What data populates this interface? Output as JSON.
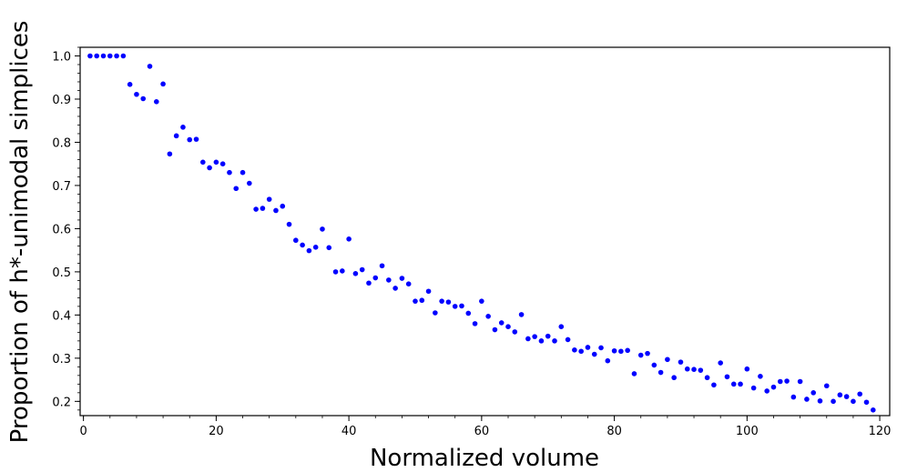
{
  "chart_data": {
    "type": "scatter",
    "title": "",
    "xlabel": "Normalized volume",
    "ylabel": "Proportion of h*-unimodal simplices",
    "xlim": [
      -0.5,
      121.5
    ],
    "ylim": [
      0.167,
      1.02
    ],
    "xticks": [
      0,
      20,
      40,
      60,
      80,
      100,
      120
    ],
    "yticks": [
      0.2,
      0.3,
      0.4,
      0.5,
      0.6,
      0.7,
      0.8,
      0.9,
      1.0
    ],
    "ytick_labels": [
      "0.2",
      "0.3",
      "0.4",
      "0.5",
      "0.6",
      "0.7",
      "0.8",
      "0.9",
      "1.0"
    ],
    "grid": false,
    "legend": "none",
    "series": [
      {
        "color": "#0000ff",
        "x": [
          1,
          2,
          3,
          4,
          5,
          6,
          7,
          8,
          9,
          10,
          11,
          12,
          13,
          14,
          15,
          16,
          17,
          18,
          19,
          20,
          21,
          22,
          23,
          24,
          25,
          26,
          27,
          28,
          29,
          30,
          31,
          32,
          33,
          34,
          35,
          36,
          37,
          38,
          39,
          40,
          41,
          42,
          43,
          44,
          45,
          46,
          47,
          48,
          49,
          50,
          51,
          52,
          53,
          54,
          55,
          56,
          57,
          58,
          59,
          60,
          61,
          62,
          63,
          64,
          65,
          66,
          67,
          68,
          69,
          70,
          71,
          72,
          73,
          74,
          75,
          76,
          77,
          78,
          79,
          80,
          81,
          82,
          83,
          84,
          85,
          86,
          87,
          88,
          89,
          90,
          91,
          92,
          93,
          94,
          95,
          96,
          97,
          98,
          99,
          100,
          101,
          102,
          103,
          104,
          105,
          106,
          107,
          108,
          109,
          110,
          111,
          112,
          113,
          114,
          115,
          116,
          117,
          118,
          119
        ],
        "y": [
          1.0,
          1.0,
          1.0,
          1.0,
          1.0,
          1.0,
          0.934,
          0.911,
          0.901,
          0.976,
          0.894,
          0.935,
          0.773,
          0.815,
          0.835,
          0.806,
          0.807,
          0.754,
          0.741,
          0.754,
          0.75,
          0.73,
          0.693,
          0.73,
          0.705,
          0.645,
          0.647,
          0.668,
          0.642,
          0.652,
          0.61,
          0.573,
          0.562,
          0.549,
          0.557,
          0.599,
          0.556,
          0.5,
          0.502,
          0.576,
          0.496,
          0.505,
          0.474,
          0.486,
          0.514,
          0.481,
          0.462,
          0.485,
          0.472,
          0.432,
          0.434,
          0.455,
          0.405,
          0.432,
          0.43,
          0.42,
          0.421,
          0.404,
          0.38,
          0.432,
          0.397,
          0.366,
          0.382,
          0.373,
          0.361,
          0.401,
          0.345,
          0.35,
          0.34,
          0.351,
          0.34,
          0.373,
          0.343,
          0.319,
          0.316,
          0.325,
          0.309,
          0.324,
          0.294,
          0.317,
          0.316,
          0.318,
          0.264,
          0.307,
          0.311,
          0.284,
          0.267,
          0.297,
          0.255,
          0.291,
          0.275,
          0.274,
          0.272,
          0.255,
          0.238,
          0.289,
          0.257,
          0.24,
          0.24,
          0.275,
          0.231,
          0.258,
          0.224,
          0.233,
          0.246,
          0.247,
          0.21,
          0.246,
          0.205,
          0.22,
          0.201,
          0.236,
          0.2,
          0.215,
          0.211,
          0.2,
          0.217,
          0.198,
          0.18
        ]
      }
    ]
  }
}
